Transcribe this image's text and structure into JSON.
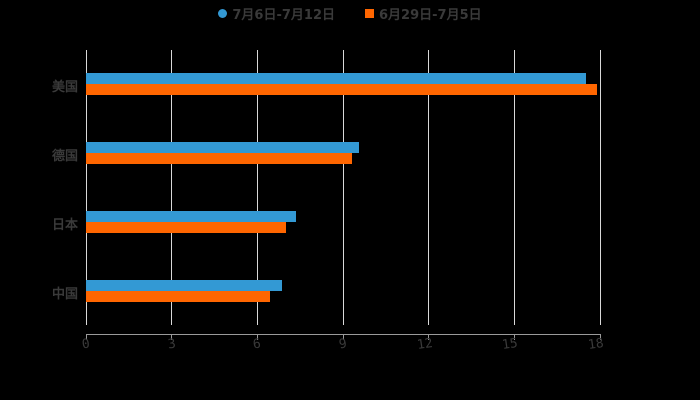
{
  "chart_data": {
    "type": "bar",
    "orientation": "horizontal",
    "title": "",
    "xlabel": "",
    "ylabel": "",
    "categories": [
      "美国",
      "德国",
      "日本",
      "中国"
    ],
    "series": [
      {
        "name": "7月6日-7月12日",
        "color": "#3399d4",
        "values": [
          17.5,
          9.55,
          7.35,
          6.85
        ]
      },
      {
        "name": "6月29日-7月5日",
        "color": "#ff6600",
        "values": [
          17.9,
          9.3,
          7.0,
          6.45
        ]
      }
    ],
    "xlim": [
      0,
      18
    ],
    "xticks": [
      "0",
      "3",
      "6",
      "9",
      "12",
      "15",
      "18"
    ],
    "grid": true,
    "legend_position": "top"
  },
  "legend": {
    "items": [
      {
        "label": "7月6日-7月12日",
        "color": "#3399d4",
        "marker": "circle"
      },
      {
        "label": "6月29日-7月5日",
        "color": "#ff6600",
        "marker": "square"
      }
    ]
  }
}
